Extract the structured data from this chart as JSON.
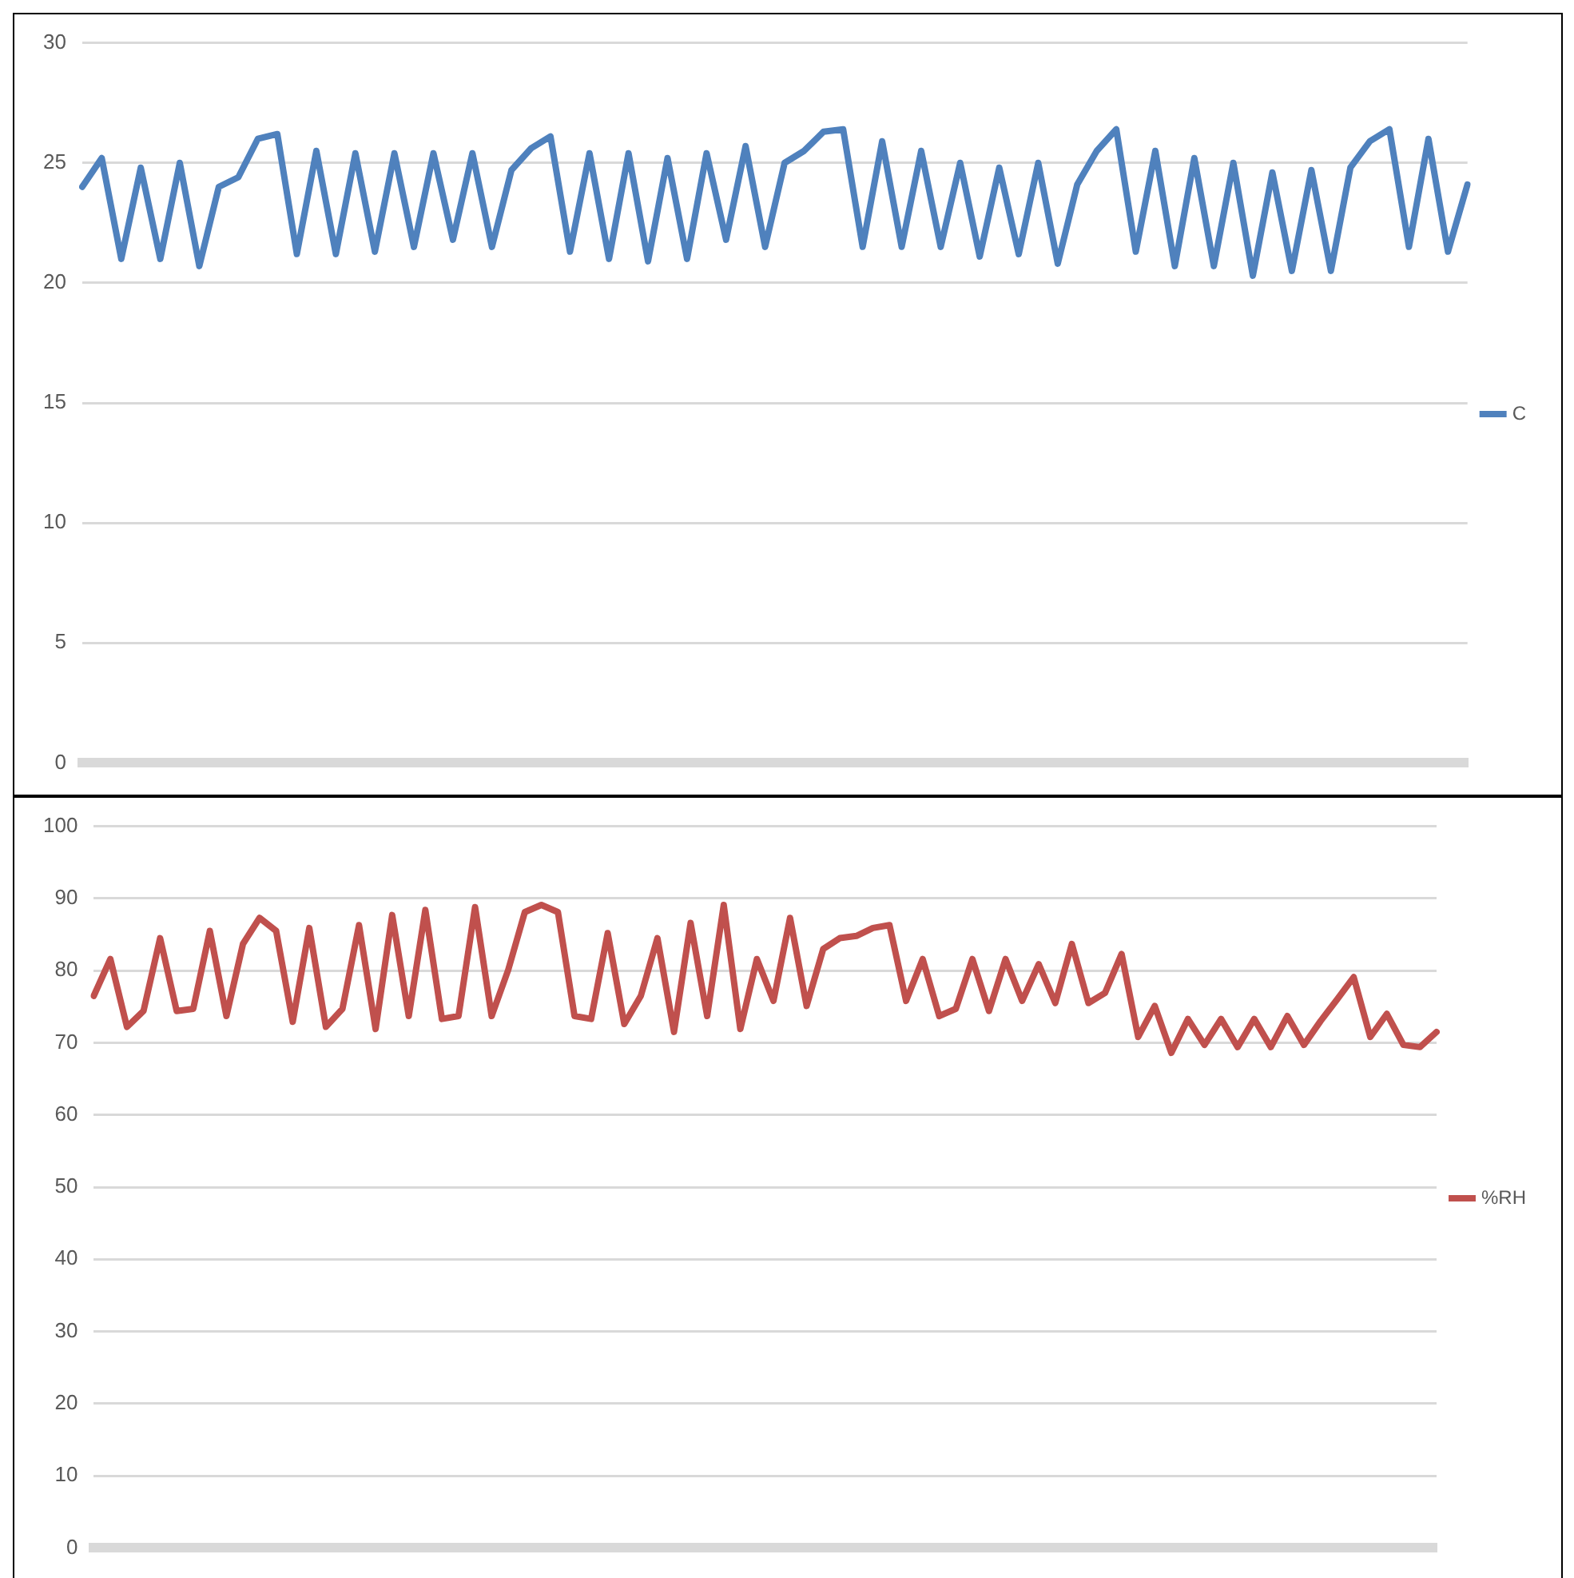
{
  "chart_data": [
    {
      "type": "line",
      "categories": [
        null,
        null,
        null,
        null,
        null,
        null,
        null,
        null,
        null,
        null,
        null,
        null,
        null,
        null,
        null,
        null,
        null,
        null,
        null,
        null,
        null,
        null,
        null,
        null,
        null,
        null,
        null,
        null,
        null,
        null,
        null,
        null,
        null,
        null,
        null,
        null,
        null,
        null,
        null,
        null,
        null,
        null,
        null,
        null,
        null,
        null,
        null,
        null,
        null,
        null,
        null,
        null,
        null,
        null,
        null,
        null,
        null,
        null,
        null,
        null,
        null,
        null,
        null,
        null,
        null,
        null,
        null,
        null,
        null,
        null,
        null,
        null
      ],
      "series": [
        {
          "name": "C",
          "color": "#4f81bd",
          "values": [
            24.0,
            25.2,
            21.0,
            24.8,
            21.0,
            25.0,
            20.7,
            24.0,
            24.4,
            26.0,
            26.2,
            21.2,
            25.5,
            21.2,
            25.4,
            21.3,
            25.4,
            21.5,
            25.4,
            21.8,
            25.4,
            21.5,
            24.7,
            25.6,
            26.1,
            21.3,
            25.4,
            21.0,
            25.4,
            20.9,
            25.2,
            21.0,
            25.4,
            21.8,
            25.7,
            21.5,
            25.0,
            25.5,
            26.3,
            26.4,
            21.5,
            25.9,
            21.5,
            25.5,
            21.5,
            25.0,
            21.1,
            24.8,
            21.2,
            25.0,
            20.8,
            24.1,
            25.5,
            26.4,
            21.3,
            25.5,
            20.7,
            25.2,
            20.7,
            25.0,
            20.3,
            24.6,
            20.5,
            24.7,
            20.5,
            24.8,
            25.9,
            26.4,
            21.5,
            26.0,
            21.3,
            24.1
          ]
        }
      ],
      "ylim": [
        0,
        30
      ],
      "yticks": [
        0,
        5,
        10,
        15,
        20,
        25,
        30
      ],
      "grid": "y",
      "legend": "right",
      "tick_labels": "y",
      "marker": "none",
      "line_style": "solid"
    },
    {
      "type": "line",
      "categories": [
        null,
        null,
        null,
        null,
        null,
        null,
        null,
        null,
        null,
        null,
        null,
        null,
        null,
        null,
        null,
        null,
        null,
        null,
        null,
        null,
        null,
        null,
        null,
        null,
        null,
        null,
        null,
        null,
        null,
        null,
        null,
        null,
        null,
        null,
        null,
        null,
        null,
        null,
        null,
        null,
        null,
        null,
        null,
        null,
        null,
        null,
        null,
        null,
        null,
        null,
        null,
        null,
        null,
        null,
        null,
        null,
        null,
        null,
        null,
        null,
        null,
        null,
        null,
        null,
        null,
        null,
        null,
        null,
        null,
        null,
        null,
        null,
        null,
        null,
        null,
        null,
        null,
        null,
        null,
        null,
        null,
        null
      ],
      "series": [
        {
          "name": "%RH",
          "color": "#c0504d",
          "values": [
            76.5,
            81.6,
            72.2,
            74.4,
            84.5,
            74.4,
            74.7,
            85.5,
            73.7,
            83.7,
            87.3,
            85.5,
            72.9,
            85.9,
            72.2,
            74.7,
            86.3,
            71.9,
            87.7,
            73.7,
            88.4,
            73.3,
            73.7,
            88.8,
            73.7,
            80.1,
            88.1,
            89.1,
            88.1,
            73.7,
            73.3,
            85.2,
            72.6,
            76.5,
            84.5,
            71.5,
            86.6,
            73.7,
            89.1,
            71.9,
            81.6,
            75.8,
            87.3,
            75.1,
            83.0,
            84.5,
            84.8,
            85.9,
            86.3,
            75.8,
            81.6,
            73.7,
            74.7,
            81.6,
            74.4,
            81.6,
            75.8,
            80.9,
            75.5,
            83.7,
            75.5,
            76.9,
            82.3,
            70.8,
            75.1,
            68.6,
            73.3,
            69.7,
            73.3,
            69.4,
            73.3,
            69.4,
            73.7,
            69.7,
            73.0,
            76.0,
            79.1,
            70.8,
            74.0,
            69.7,
            69.4,
            71.5
          ]
        }
      ],
      "ylim": [
        0,
        100
      ],
      "yticks": [
        0,
        10,
        20,
        30,
        40,
        50,
        60,
        70,
        80,
        90,
        100
      ],
      "grid": "y",
      "legend": "right",
      "tick_labels": "y",
      "marker": "none",
      "line_style": "solid"
    }
  ]
}
